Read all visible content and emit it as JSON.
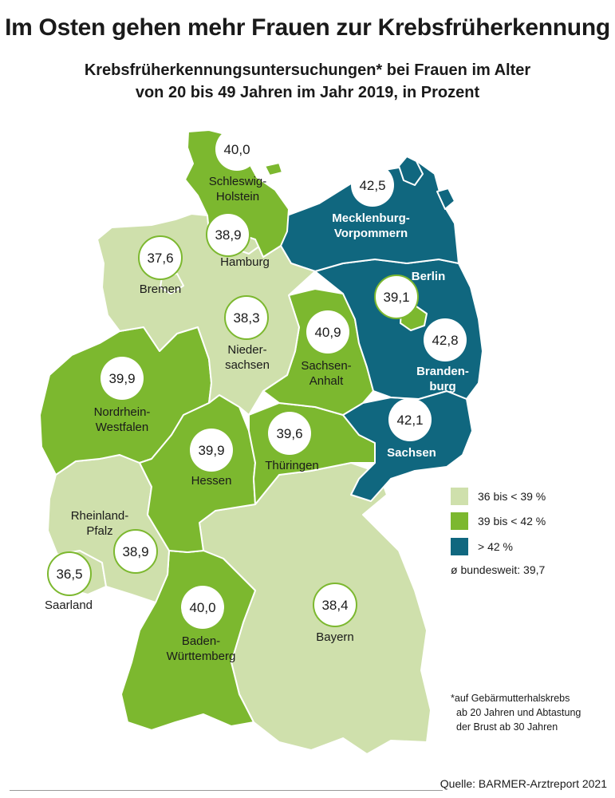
{
  "title": "Im Osten gehen mehr Frauen zur Krebsfrüherkennung",
  "subtitle_line1": "Krebsfrüherkennungsuntersuchungen* bei Frauen im Alter",
  "subtitle_line2": "von 20 bis 49 Jahren im Jahr 2019, in Prozent",
  "colors": {
    "light": "#cfe0ac",
    "medium": "#7cb82f",
    "dark": "#10677f",
    "line": "#ffffff"
  },
  "legend": [
    {
      "label": "36 bis < 39 %",
      "color": "#cfe0ac"
    },
    {
      "label": "39 bis < 42 %",
      "color": "#7cb82f"
    },
    {
      "label": "> 42 %",
      "color": "#10677f"
    }
  ],
  "average": "ø bundesweit: 39,7",
  "footnote": [
    "*auf Gebärmutterhalskrebs",
    "ab 20 Jahren und Abtastung",
    "der Brust ab 30 Jahren"
  ],
  "source": "Quelle: BARMER-Arztreport 2021",
  "states": [
    {
      "id": "schleswig-holstein",
      "value": "40,0",
      "name_lines": [
        "Schleswig-",
        "Holstein"
      ],
      "class": "medium"
    },
    {
      "id": "hamburg",
      "value": "38,9",
      "name_lines": [
        "Hamburg"
      ],
      "class": "light"
    },
    {
      "id": "bremen",
      "value": "37,6",
      "name_lines": [
        "Bremen"
      ],
      "class": "light"
    },
    {
      "id": "niedersachsen",
      "value": "38,3",
      "name_lines": [
        "Nieder-",
        "sachsen"
      ],
      "class": "light"
    },
    {
      "id": "mecklenburg-vorpommern",
      "value": "42,5",
      "name_lines": [
        "Mecklenburg-",
        "Vorpommern"
      ],
      "class": "dark"
    },
    {
      "id": "berlin",
      "value": "39,1",
      "name_lines": [
        "Berlin"
      ],
      "class": "medium"
    },
    {
      "id": "brandenburg",
      "value": "42,8",
      "name_lines": [
        "Branden-",
        "burg"
      ],
      "class": "dark"
    },
    {
      "id": "sachsen-anhalt",
      "value": "40,9",
      "name_lines": [
        "Sachsen-",
        "Anhalt"
      ],
      "class": "medium"
    },
    {
      "id": "sachsen",
      "value": "42,1",
      "name_lines": [
        "Sachsen"
      ],
      "class": "dark"
    },
    {
      "id": "thueringen",
      "value": "39,6",
      "name_lines": [
        "Thüringen"
      ],
      "class": "medium"
    },
    {
      "id": "nordrhein-westfalen",
      "value": "39,9",
      "name_lines": [
        "Nordrhein-",
        "Westfalen"
      ],
      "class": "medium"
    },
    {
      "id": "hessen",
      "value": "39,9",
      "name_lines": [
        "Hessen"
      ],
      "class": "medium"
    },
    {
      "id": "rheinland-pfalz",
      "value": "38,9",
      "name_lines": [
        "Rheinland-",
        "Pfalz"
      ],
      "class": "light"
    },
    {
      "id": "saarland",
      "value": "36,5",
      "name_lines": [
        "Saarland"
      ],
      "class": "light"
    },
    {
      "id": "baden-wuerttemberg",
      "value": "40,0",
      "name_lines": [
        "Baden-",
        "Württemberg"
      ],
      "class": "medium"
    },
    {
      "id": "bayern",
      "value": "38,4",
      "name_lines": [
        "Bayern"
      ],
      "class": "light"
    }
  ]
}
